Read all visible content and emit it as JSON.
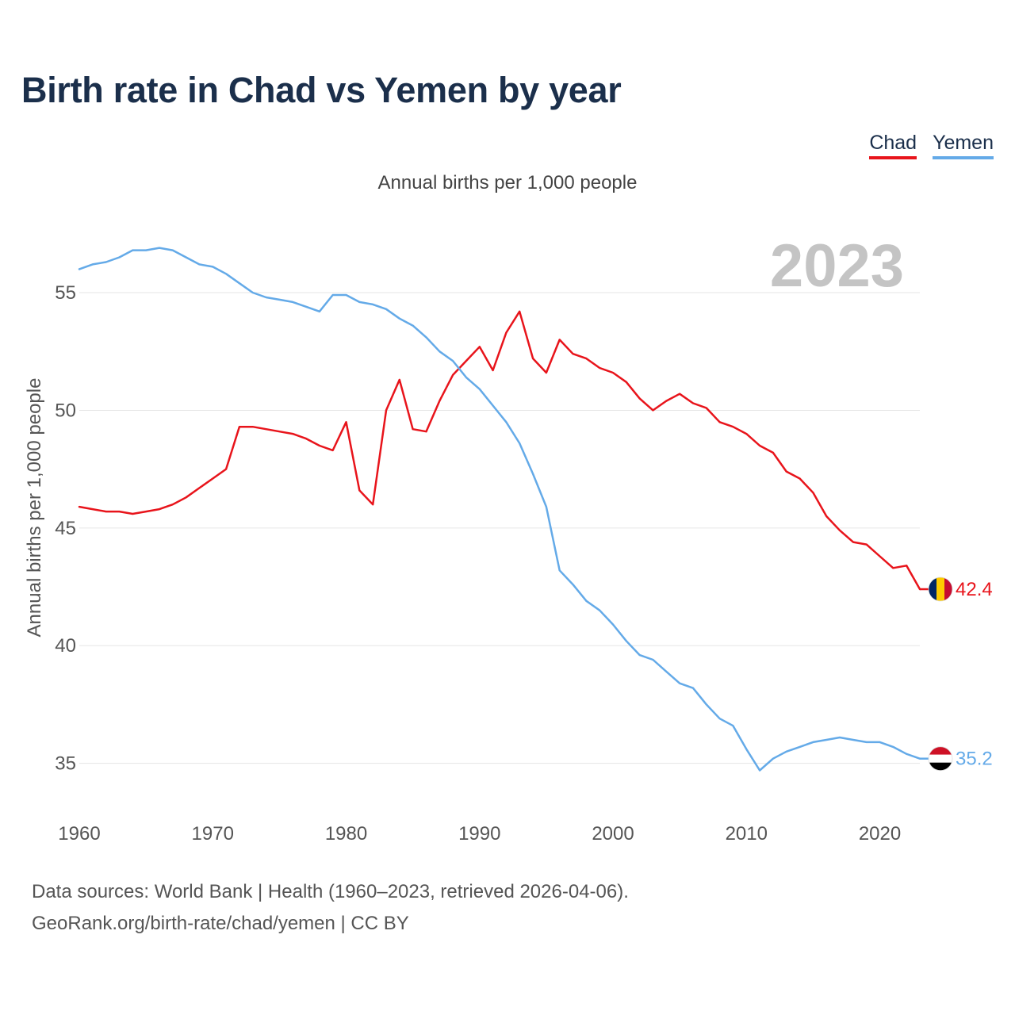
{
  "title": "Birth rate in Chad vs Yemen by year",
  "subtitle": "Annual births per 1,000 people",
  "watermark_year": "2023",
  "footer": {
    "line1": "Data sources: World Bank | Health (1960–2023, retrieved 2026-04-06).",
    "line2": "GeoRank.org/birth-rate/chad/yemen | CC BY"
  },
  "chart_data": {
    "type": "line",
    "title": "Birth rate in Chad vs Yemen by year",
    "subtitle": "Annual births per 1,000 people",
    "xlabel": "",
    "ylabel": "Annual births per 1,000 people",
    "xlim": [
      1960,
      2023
    ],
    "ylim": [
      33,
      58
    ],
    "xticks": [
      1960,
      1970,
      1980,
      1990,
      2000,
      2010,
      2020
    ],
    "yticks": [
      35,
      40,
      45,
      50,
      55
    ],
    "grid": true,
    "legend_position": "top-right",
    "series": [
      {
        "name": "Chad",
        "color": "#e8141b",
        "end_label": "42.4",
        "flag": "chad",
        "x": [
          1960,
          1961,
          1962,
          1963,
          1964,
          1965,
          1966,
          1967,
          1968,
          1969,
          1970,
          1971,
          1972,
          1973,
          1974,
          1975,
          1976,
          1977,
          1978,
          1979,
          1980,
          1981,
          1982,
          1983,
          1984,
          1985,
          1986,
          1987,
          1988,
          1989,
          1990,
          1991,
          1992,
          1993,
          1994,
          1995,
          1996,
          1997,
          1998,
          1999,
          2000,
          2001,
          2002,
          2003,
          2004,
          2005,
          2006,
          2007,
          2008,
          2009,
          2010,
          2011,
          2012,
          2013,
          2014,
          2015,
          2016,
          2017,
          2018,
          2019,
          2020,
          2021,
          2022,
          2023
        ],
        "values": [
          45.9,
          45.8,
          45.7,
          45.7,
          45.6,
          45.7,
          45.8,
          46.0,
          46.3,
          46.7,
          47.1,
          47.5,
          49.3,
          49.3,
          49.2,
          49.1,
          49.0,
          48.8,
          48.5,
          48.3,
          49.5,
          46.6,
          46.0,
          50.0,
          51.3,
          49.2,
          49.1,
          50.4,
          51.5,
          52.1,
          52.7,
          51.7,
          53.3,
          54.2,
          52.2,
          51.6,
          53.0,
          52.4,
          52.2,
          51.8,
          51.6,
          51.2,
          50.5,
          50.0,
          50.4,
          50.7,
          50.3,
          50.1,
          49.5,
          49.3,
          49.0,
          48.5,
          48.2,
          47.4,
          47.1,
          46.5,
          45.5,
          44.9,
          44.4,
          44.3,
          43.8,
          43.3,
          43.4,
          42.4
        ]
      },
      {
        "name": "Yemen",
        "color": "#64aae8",
        "end_label": "35.2",
        "flag": "yemen",
        "x": [
          1960,
          1961,
          1962,
          1963,
          1964,
          1965,
          1966,
          1967,
          1968,
          1969,
          1970,
          1971,
          1972,
          1973,
          1974,
          1975,
          1976,
          1977,
          1978,
          1979,
          1980,
          1981,
          1982,
          1983,
          1984,
          1985,
          1986,
          1987,
          1988,
          1989,
          1990,
          1991,
          1992,
          1993,
          1994,
          1995,
          1996,
          1997,
          1998,
          1999,
          2000,
          2001,
          2002,
          2003,
          2004,
          2005,
          2006,
          2007,
          2008,
          2009,
          2010,
          2011,
          2012,
          2013,
          2014,
          2015,
          2016,
          2017,
          2018,
          2019,
          2020,
          2021,
          2022,
          2023
        ],
        "values": [
          56.0,
          56.2,
          56.3,
          56.5,
          56.8,
          56.8,
          56.9,
          56.8,
          56.5,
          56.2,
          56.1,
          55.8,
          55.4,
          55.0,
          54.8,
          54.7,
          54.6,
          54.4,
          54.2,
          54.9,
          54.9,
          54.6,
          54.5,
          54.3,
          53.9,
          53.6,
          53.1,
          52.5,
          52.1,
          51.4,
          50.9,
          50.2,
          49.5,
          48.6,
          47.3,
          45.9,
          43.2,
          42.6,
          41.9,
          41.5,
          40.9,
          40.2,
          39.6,
          39.4,
          38.9,
          38.4,
          38.2,
          37.5,
          36.9,
          36.6,
          35.6,
          34.7,
          35.2,
          35.5,
          35.7,
          35.9,
          36.0,
          36.1,
          36.0,
          35.9,
          35.9,
          35.7,
          35.4,
          35.2
        ]
      }
    ]
  }
}
